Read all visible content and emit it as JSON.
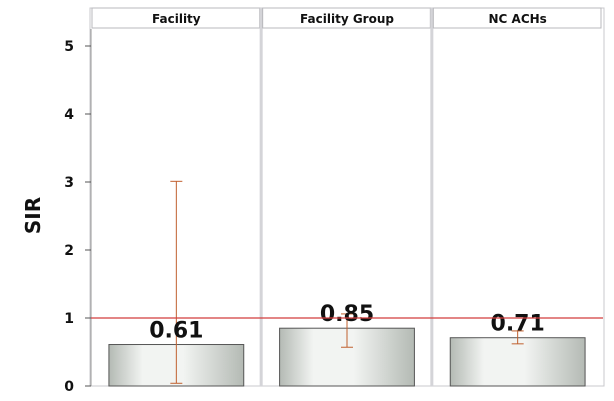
{
  "chart_data": {
    "type": "bar",
    "ylabel": "SIR",
    "ylim": [
      0,
      5.25
    ],
    "yticks": [
      0,
      1,
      2,
      3,
      4,
      5
    ],
    "reference_line": 1,
    "categories": [
      "Facility",
      "Facility Group",
      "NC ACHs"
    ],
    "values": [
      0.61,
      0.85,
      0.71
    ],
    "data_labels": [
      "0.61",
      "0.85",
      "0.71"
    ],
    "ci_lower": [
      0.04,
      0.57,
      0.62
    ],
    "ci_upper": [
      3.01,
      1.06,
      0.81
    ],
    "colors": {
      "bar_fill_light": "#f2f4f2",
      "bar_fill_dark": "#b4bab4",
      "bar_stroke": "#555555",
      "error_bar": "#c0602e",
      "reference_line": "#d23c3c",
      "panel_divider": "#d4d4d8",
      "header_fill": "#ffffff"
    }
  }
}
